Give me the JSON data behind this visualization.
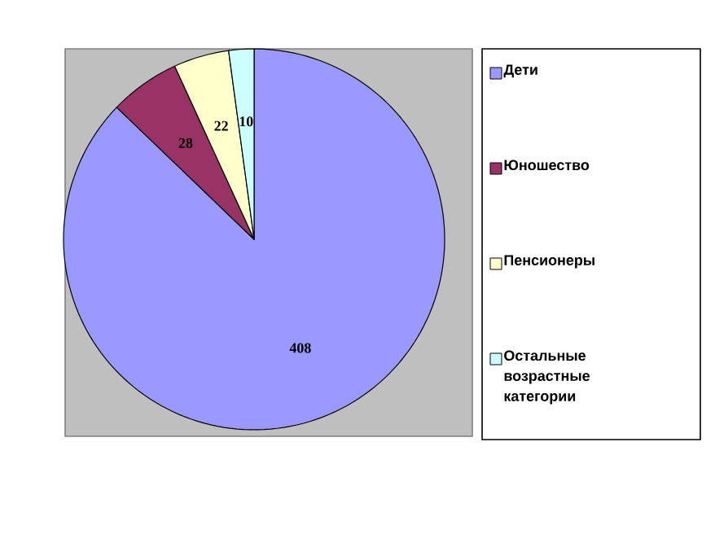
{
  "chart_data": {
    "type": "pie",
    "categories": [
      "Дети",
      "Юношество",
      "Пенсионеры",
      "Остальные возрастные категории"
    ],
    "values": [
      408,
      28,
      22,
      10
    ],
    "value_labels": [
      "408",
      "28",
      "22",
      "10"
    ],
    "colors": [
      "#9999ff",
      "#993366",
      "#ffffcc",
      "#ccffff"
    ],
    "legend": "right"
  }
}
